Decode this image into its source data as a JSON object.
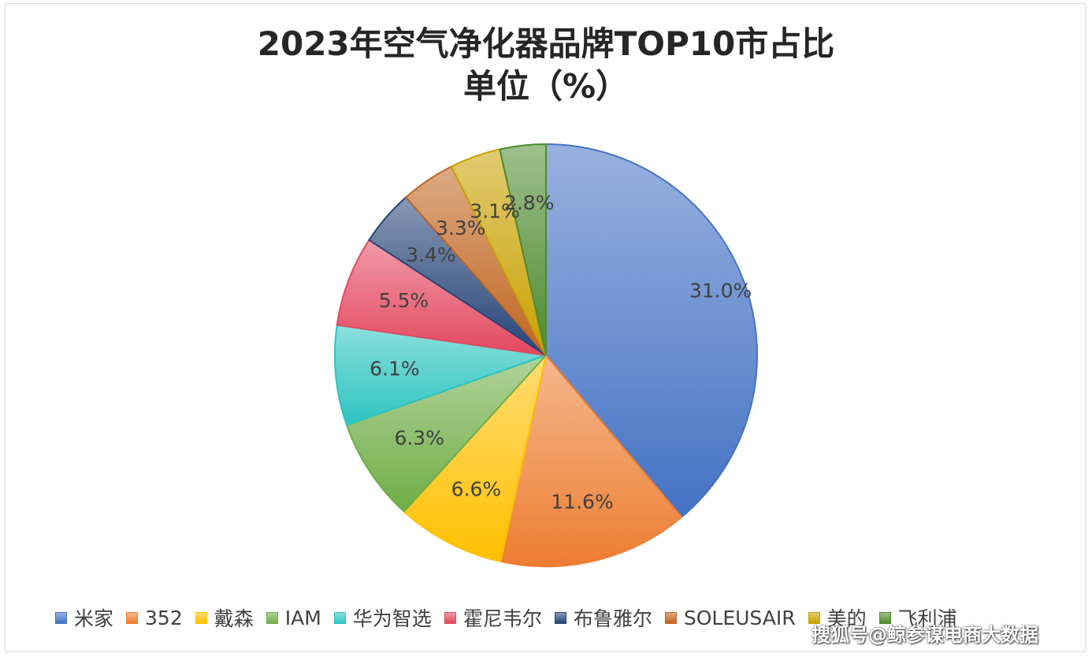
{
  "chart_data": {
    "type": "pie",
    "title": "2023年空气净化器品牌TOP10市占比",
    "subtitle": "单位（%）",
    "categories": [
      "米家",
      "352",
      "戴森",
      "IAM",
      "华为智选",
      "霍尼韦尔",
      "布鲁雅尔",
      "SOLEUSAIR",
      "美的",
      "飞利浦"
    ],
    "values": [
      31.0,
      11.6,
      6.6,
      6.3,
      6.1,
      5.5,
      3.4,
      3.3,
      3.1,
      2.8
    ],
    "labels": [
      "31.0%",
      "11.6%",
      "6.6%",
      "6.3%",
      "6.1%",
      "5.5%",
      "3.4%",
      "3.3%",
      "3.1%",
      "2.8%"
    ],
    "colors": [
      "#4472c4",
      "#ed7d31",
      "#ffc000",
      "#70ad47",
      "#2cc4c0",
      "#e3485f",
      "#264478",
      "#c0651f",
      "#c9a000",
      "#4e8a2e"
    ],
    "legend_position": "bottom"
  },
  "watermark": "搜狐号@鲸参谋电商大数据"
}
